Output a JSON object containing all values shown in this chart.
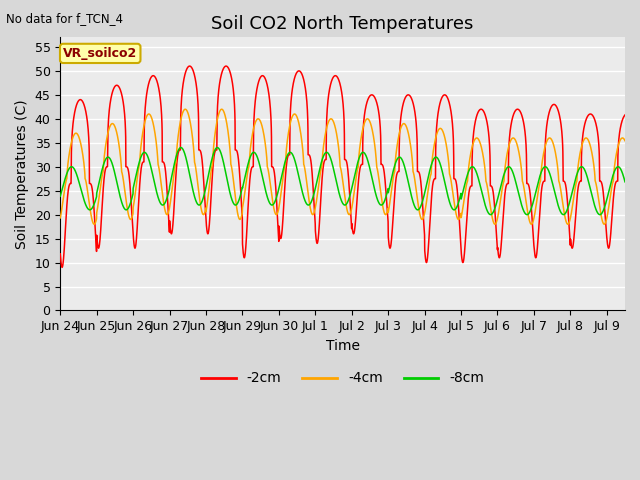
{
  "title": "Soil CO2 North Temperatures",
  "no_data_label": "No data for f_TCN_4",
  "xlabel": "Time",
  "ylabel": "Soil Temperatures (C)",
  "legend_label": "VR_soilco2",
  "ylim": [
    0,
    57
  ],
  "yticks": [
    0,
    5,
    10,
    15,
    20,
    25,
    30,
    35,
    40,
    45,
    50,
    55
  ],
  "total_days": 15.5,
  "colors": {
    "2cm": "#ff0000",
    "4cm": "#ffa500",
    "8cm": "#00cc00"
  },
  "legend_entries": [
    "-2cm",
    "-4cm",
    "-8cm"
  ],
  "fig_bg_color": "#d8d8d8",
  "plot_bg_color": "#ebebeb",
  "grid_color": "#ffffff",
  "title_fontsize": 13,
  "label_fontsize": 10,
  "tick_fontsize": 9,
  "xtick_labels": [
    "Jun 24",
    "Jun 25",
    "Jun 26",
    "Jun 27",
    "Jun 28",
    "Jun 29",
    "Jun 30",
    "Jul 1",
    "Jul 2",
    "Jul 3",
    "Jul 4",
    "Jul 5",
    "Jul 6",
    "Jul 7",
    "Jul 8",
    "Jul 9"
  ],
  "series_2cm_peaks": [
    44,
    47,
    49,
    51,
    51,
    49,
    50,
    49,
    45,
    45,
    45,
    42,
    42,
    43,
    41
  ],
  "series_2cm_troughs": [
    9,
    13,
    13,
    16,
    16,
    11,
    15,
    14,
    16,
    13,
    10,
    10,
    11,
    11,
    13
  ],
  "series_4cm_peaks": [
    37,
    39,
    41,
    42,
    42,
    40,
    41,
    40,
    40,
    39,
    38,
    36,
    36,
    36,
    36
  ],
  "series_4cm_troughs": [
    18,
    19,
    20,
    20,
    19,
    20,
    20,
    20,
    20,
    19,
    19,
    18,
    18,
    18,
    18
  ],
  "series_8cm_peaks": [
    30,
    32,
    33,
    34,
    34,
    33,
    33,
    33,
    33,
    32,
    32,
    30,
    30,
    30,
    30
  ],
  "series_8cm_troughs": [
    21,
    21,
    22,
    22,
    22,
    22,
    22,
    22,
    22,
    21,
    21,
    20,
    20,
    20,
    20
  ],
  "phase_2cm": -0.05,
  "phase_4cm": 0.07,
  "phase_8cm": 0.19,
  "sharpness_2cm": 3.5,
  "sharpness_4cm": 1.5,
  "sharpness_8cm": 1.0
}
